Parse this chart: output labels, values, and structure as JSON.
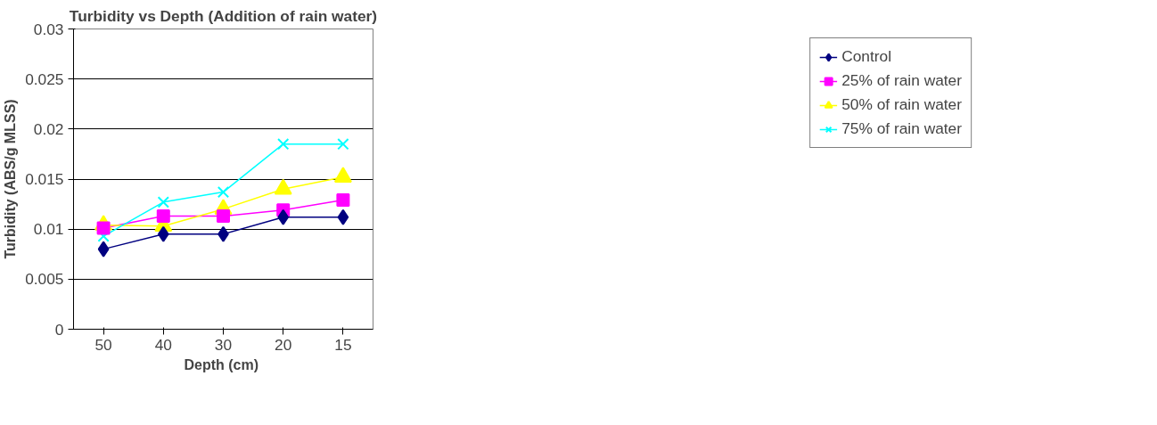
{
  "chart_data": {
    "type": "line",
    "title": "Turbidity vs Depth (Addition of rain water)",
    "xlabel": "Depth  (cm)",
    "ylabel": "Turbidity (ABS/g MLSS)",
    "categories": [
      "50",
      "40",
      "30",
      "20",
      "15"
    ],
    "series": [
      {
        "name": "Control",
        "color": "#000080",
        "marker": "diamond",
        "values": [
          0.008,
          0.0095,
          0.0095,
          0.0112,
          0.0112
        ]
      },
      {
        "name": "25% of rain water",
        "color": "#ff00ff",
        "marker": "square",
        "values": [
          0.0101,
          0.0113,
          0.0113,
          0.0119,
          0.0129
        ]
      },
      {
        "name": "50% of rain water",
        "color": "#ffff00",
        "marker": "triangle",
        "values": [
          0.0104,
          0.0103,
          0.012,
          0.014,
          0.0152
        ]
      },
      {
        "name": "75% of rain water",
        "color": "#00ffff",
        "marker": "cross",
        "values": [
          0.0093,
          0.0127,
          0.0137,
          0.0185,
          0.0185
        ]
      }
    ],
    "ylim": [
      0,
      0.03
    ],
    "yticks": [
      0,
      0.005,
      0.01,
      0.015,
      0.02,
      0.025,
      0.03
    ],
    "grid": "y",
    "legend": "right",
    "line_style": "solid"
  }
}
